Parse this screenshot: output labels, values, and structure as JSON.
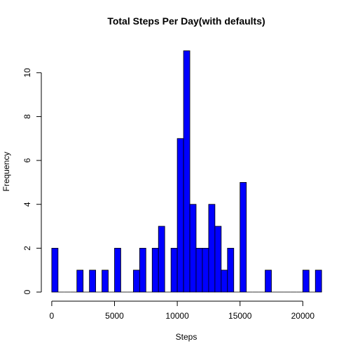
{
  "chart_data": {
    "type": "bar",
    "title": "Total Steps Per Day(with defaults)",
    "xlabel": "Steps",
    "ylabel": "Frequency",
    "bin_width": 500,
    "bins": [
      [
        0,
        500,
        2
      ],
      [
        500,
        1000,
        0
      ],
      [
        1000,
        1500,
        0
      ],
      [
        1500,
        2000,
        0
      ],
      [
        2000,
        2500,
        1
      ],
      [
        2500,
        3000,
        0
      ],
      [
        3000,
        3500,
        1
      ],
      [
        3500,
        4000,
        0
      ],
      [
        4000,
        4500,
        1
      ],
      [
        4500,
        5000,
        0
      ],
      [
        5000,
        5500,
        2
      ],
      [
        5500,
        6000,
        0
      ],
      [
        6000,
        6500,
        0
      ],
      [
        6500,
        7000,
        1
      ],
      [
        7000,
        7500,
        2
      ],
      [
        7500,
        8000,
        0
      ],
      [
        8000,
        8500,
        2
      ],
      [
        8500,
        9000,
        3
      ],
      [
        9000,
        9500,
        0
      ],
      [
        9500,
        10000,
        2
      ],
      [
        10000,
        10500,
        7
      ],
      [
        10500,
        11000,
        11
      ],
      [
        11000,
        11500,
        4
      ],
      [
        11500,
        12000,
        2
      ],
      [
        12000,
        12500,
        2
      ],
      [
        12500,
        13000,
        4
      ],
      [
        13000,
        13500,
        3
      ],
      [
        13500,
        14000,
        1
      ],
      [
        14000,
        14500,
        2
      ],
      [
        14500,
        15000,
        0
      ],
      [
        15000,
        15500,
        5
      ],
      [
        15500,
        16000,
        0
      ],
      [
        16000,
        16500,
        0
      ],
      [
        16500,
        17000,
        0
      ],
      [
        17000,
        17500,
        1
      ],
      [
        17500,
        18000,
        0
      ],
      [
        18000,
        18500,
        0
      ],
      [
        18500,
        19000,
        0
      ],
      [
        19000,
        19500,
        0
      ],
      [
        19500,
        20000,
        0
      ],
      [
        20000,
        20500,
        1
      ],
      [
        20500,
        21000,
        0
      ],
      [
        21000,
        21500,
        1
      ]
    ],
    "xlim": [
      0,
      21500
    ],
    "ylim": [
      0,
      11
    ],
    "x_ticks": [
      0,
      5000,
      10000,
      15000,
      20000
    ],
    "y_ticks": [
      0,
      2,
      4,
      6,
      8,
      10
    ],
    "bar_color": "#0000FF",
    "bar_edge_color": "#000000",
    "grid": false,
    "legend": "none"
  }
}
